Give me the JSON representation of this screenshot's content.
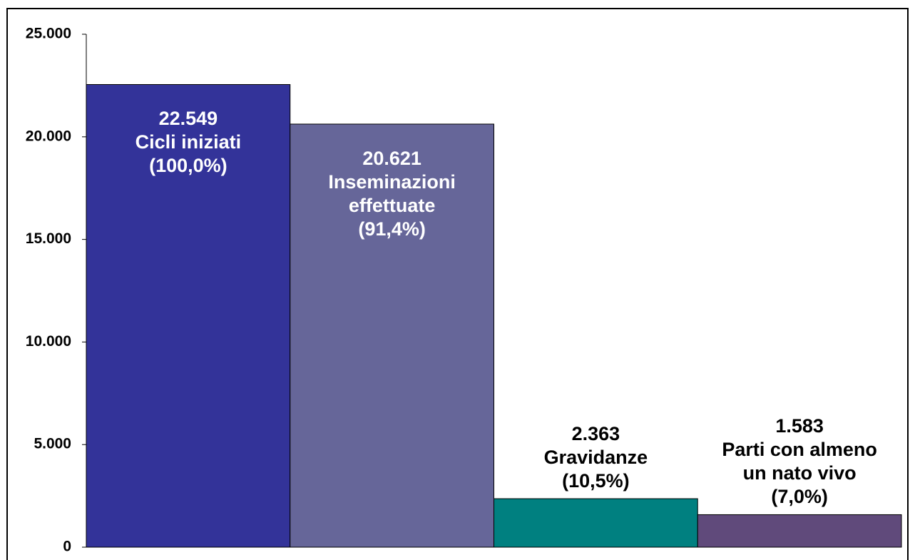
{
  "chart_data": {
    "type": "bar",
    "categories": [
      "Cicli iniziati",
      "Inseminazioni effettuate",
      "Gravidanze",
      "Parti con almeno un nato vivo"
    ],
    "values": [
      22549,
      20621,
      2363,
      1583
    ],
    "value_labels": [
      "22.549",
      "20.621",
      "2.363",
      "1.583"
    ],
    "shares": [
      100.0,
      91.4,
      10.5,
      7.0
    ],
    "share_labels": [
      "(100,0%)",
      "(91,4%)",
      "(10,5%)",
      "(7,0%)"
    ],
    "colors": [
      "#333399",
      "#666699",
      "#008080",
      "#604a7b"
    ],
    "ylim": [
      0,
      25000
    ],
    "yticks": [
      0,
      {
        "value": 5000,
        "label": "5.000"
      },
      {
        "value": 10000,
        "label": "10.000"
      },
      {
        "value": 15000,
        "label": "15.000"
      },
      {
        "value": 20000,
        "label": "20.000"
      },
      {
        "value": 25000,
        "label": "25.000"
      }
    ],
    "grid": false
  }
}
